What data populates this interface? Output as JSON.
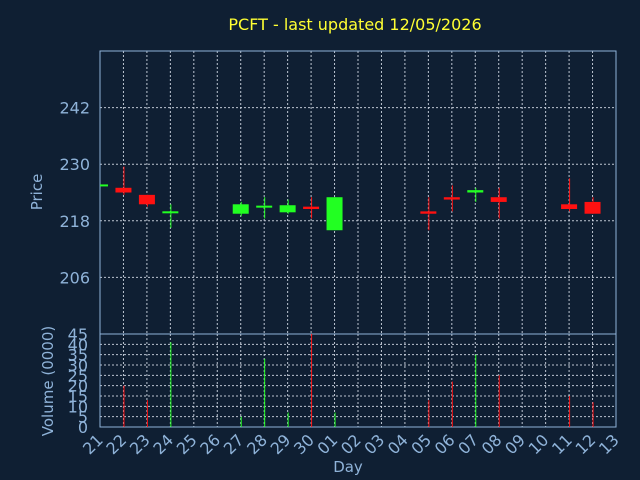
{
  "chart_data": {
    "type": "candlestick",
    "title": "PCFT - last updated 12/05/2026",
    "ylabel_price": "Price",
    "ylabel_volume": "Volume (0000)",
    "xlabel": "Day",
    "categories": [
      "21",
      "22",
      "23",
      "24",
      "25",
      "26",
      "27",
      "28",
      "29",
      "30",
      "01",
      "02",
      "03",
      "04",
      "05",
      "06",
      "07",
      "08",
      "09",
      "10",
      "11",
      "12",
      "13"
    ],
    "price_ylim": [
      194,
      254
    ],
    "price_ticks": [
      242,
      230,
      218,
      206
    ],
    "volume_ylim": [
      0,
      45
    ],
    "volume_ticks": [
      45,
      40,
      35,
      30,
      25,
      20,
      15,
      10,
      5,
      0
    ],
    "series": [
      {
        "name": "open",
        "values": [
          225.5,
          225,
          223.5,
          219.8,
          null,
          null,
          219.5,
          221,
          219.8,
          221,
          216,
          null,
          null,
          null,
          220,
          223,
          224,
          223,
          null,
          null,
          221.5,
          222,
          null
        ]
      },
      {
        "name": "high",
        "values": [
          225.5,
          229.5,
          223.5,
          221.5,
          null,
          null,
          222,
          223,
          222.5,
          223,
          223,
          null,
          null,
          null,
          223,
          225.5,
          225,
          225,
          null,
          null,
          227,
          223,
          null
        ]
      },
      {
        "name": "low",
        "values": [
          225.5,
          223.5,
          221,
          216.5,
          null,
          null,
          219,
          218.5,
          219.5,
          218.5,
          216,
          null,
          null,
          null,
          216,
          220,
          222,
          218.5,
          null,
          null,
          220,
          219.5,
          null
        ]
      },
      {
        "name": "close",
        "values": [
          225.5,
          224,
          221.5,
          219.8,
          null,
          null,
          221.5,
          221,
          221.3,
          220.5,
          223,
          null,
          null,
          null,
          219.5,
          222.5,
          224.5,
          222,
          null,
          null,
          220.5,
          219.5,
          null
        ]
      },
      {
        "name": "volume",
        "values": [
          0,
          20,
          13,
          41,
          0,
          0,
          5,
          33,
          7,
          46,
          7,
          0,
          0,
          0,
          13,
          22,
          35,
          25,
          0,
          0,
          15,
          12,
          0
        ]
      }
    ],
    "grid": true,
    "colors": {
      "up": "#22ff22",
      "down": "#ff1111",
      "background": "#0f1f33",
      "axis": "#8fb3d9",
      "title": "#ffff33"
    }
  }
}
